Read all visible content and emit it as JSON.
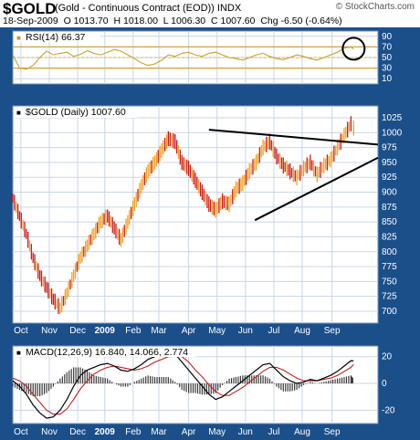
{
  "header": {
    "symbol": "$GOLD",
    "description": "(Gold - Continuous Contract (EOD)) INDX",
    "watermark": "© StockCharts.com",
    "date": "18-Sep-2009",
    "open_label": "O",
    "open": "1013.70",
    "high_label": "H",
    "high": "1018.00",
    "low_label": "L",
    "low": "1006.30",
    "close_label": "C",
    "close": "1007.60",
    "chg_label": "Chg",
    "chg": "-6.50 (-0.64%)"
  },
  "colors": {
    "panel_bg": "#1b4f8a",
    "plot_bg": "#ffffff",
    "grid": "#c9d6e6",
    "rsi_line": "#c8a028",
    "rsi_band": "#d4a530",
    "up_bar": "#f0a020",
    "down_bar": "#d01818",
    "macd_line": "#000000",
    "signal_line": "#c02020",
    "hist": "#3a3a3a",
    "trendline": "#000000"
  },
  "chart_data": [
    {
      "type": "line",
      "panel": "rsi",
      "label": "RSI(14) 66.37",
      "indicator": "RSI(14)",
      "last_value": 66.37,
      "yticks": [
        90,
        70,
        50,
        30,
        10
      ],
      "ylim": [
        0,
        100
      ],
      "bands": [
        70,
        30
      ],
      "x": [
        0,
        5,
        10,
        15,
        20,
        25,
        30,
        35,
        40,
        45,
        50,
        55,
        60,
        65,
        70,
        75,
        80,
        85,
        90,
        95,
        100,
        105,
        110,
        115,
        120,
        125,
        130,
        135,
        140,
        145,
        150,
        155,
        160,
        165,
        170,
        175,
        180,
        185,
        190,
        195,
        200,
        205,
        210,
        215,
        220,
        225,
        230,
        235,
        240,
        245,
        250,
        252
      ],
      "values": [
        55,
        30,
        28,
        35,
        50,
        62,
        55,
        58,
        60,
        52,
        56,
        63,
        58,
        55,
        60,
        65,
        62,
        55,
        48,
        40,
        35,
        38,
        45,
        55,
        52,
        58,
        60,
        55,
        52,
        58,
        60,
        55,
        50,
        48,
        45,
        50,
        55,
        58,
        52,
        48,
        46,
        50,
        55,
        52,
        48,
        45,
        50,
        55,
        60,
        68,
        70,
        66
      ],
      "annotations": [
        "circle-at-latest-rsi"
      ]
    },
    {
      "type": "bar",
      "panel": "price",
      "label": "$GOLD (Daily) 1007.60",
      "series_name": "$GOLD (Daily)",
      "last_value": 1007.6,
      "yticks": [
        1025,
        1000,
        975,
        950,
        925,
        900,
        875,
        850,
        825,
        800,
        775,
        750,
        725,
        700
      ],
      "ylim": [
        680,
        1045
      ],
      "xticks": [
        "Oct",
        "Nov",
        "Dec",
        "2009",
        "Feb",
        "Mar",
        "Apr",
        "May",
        "Jun",
        "Jul",
        "Aug",
        "Sep"
      ],
      "x": [
        0,
        5,
        10,
        15,
        20,
        25,
        30,
        35,
        40,
        45,
        50,
        55,
        60,
        65,
        70,
        75,
        80,
        85,
        90,
        95,
        100,
        105,
        110,
        115,
        120,
        125,
        130,
        135,
        140,
        145,
        150,
        155,
        160,
        165,
        170,
        175,
        180,
        185,
        190,
        195,
        200,
        205,
        210,
        215,
        220,
        225,
        230,
        235,
        240,
        245,
        250,
        252
      ],
      "values": [
        890,
        860,
        830,
        790,
        760,
        740,
        720,
        705,
        730,
        760,
        790,
        810,
        830,
        850,
        860,
        840,
        820,
        850,
        880,
        910,
        935,
        950,
        970,
        990,
        985,
        950,
        940,
        920,
        900,
        880,
        870,
        885,
        880,
        905,
        915,
        935,
        950,
        975,
        985,
        960,
        945,
        935,
        925,
        940,
        950,
        930,
        945,
        955,
        975,
        995,
        1015,
        1007.6
      ],
      "trendlines": [
        {
          "from": [
            145,
            1005
          ],
          "to": [
            270,
            980
          ]
        },
        {
          "from": [
            179,
            853
          ],
          "to": [
            270,
            958
          ]
        }
      ]
    },
    {
      "type": "line",
      "panel": "macd",
      "label": "MACD(12,26,9) 16.840, 14.066, 2.774",
      "indicator": "MACD(12,26,9)",
      "last_values": [
        16.84,
        14.066,
        2.774
      ],
      "yticks": [
        20,
        0,
        -20
      ],
      "ylim": [
        -30,
        28
      ],
      "xticks": [
        "Oct",
        "Nov",
        "Dec",
        "2009",
        "Feb",
        "Mar",
        "Apr",
        "May",
        "Jun",
        "Jul",
        "Aug",
        "Sep"
      ],
      "x": [
        0,
        5,
        10,
        15,
        20,
        25,
        30,
        35,
        40,
        45,
        50,
        55,
        60,
        65,
        70,
        75,
        80,
        85,
        90,
        95,
        100,
        105,
        110,
        115,
        120,
        125,
        130,
        135,
        140,
        145,
        150,
        155,
        160,
        165,
        170,
        175,
        180,
        185,
        190,
        195,
        200,
        205,
        210,
        215,
        220,
        225,
        230,
        235,
        240,
        245,
        250,
        252
      ],
      "macd": [
        2,
        -2,
        -8,
        -16,
        -22,
        -26,
        -25,
        -20,
        -12,
        -2,
        6,
        10,
        12,
        14,
        15,
        13,
        10,
        9,
        11,
        14,
        18,
        20,
        22,
        24,
        22,
        16,
        10,
        4,
        -2,
        -8,
        -12,
        -10,
        -6,
        -2,
        2,
        6,
        10,
        14,
        15,
        10,
        5,
        2,
        0,
        1,
        3,
        2,
        4,
        6,
        9,
        13,
        17,
        16.84
      ],
      "signal": [
        4,
        2,
        -2,
        -8,
        -14,
        -20,
        -23,
        -23,
        -19,
        -12,
        -4,
        2,
        7,
        10,
        12,
        13,
        12,
        11,
        10,
        11,
        13,
        16,
        18,
        20,
        21,
        20,
        16,
        10,
        5,
        -1,
        -6,
        -9,
        -9,
        -6,
        -3,
        1,
        5,
        9,
        12,
        12,
        10,
        7,
        4,
        2,
        2,
        2,
        3,
        4,
        6,
        9,
        12,
        14.066
      ]
    }
  ]
}
